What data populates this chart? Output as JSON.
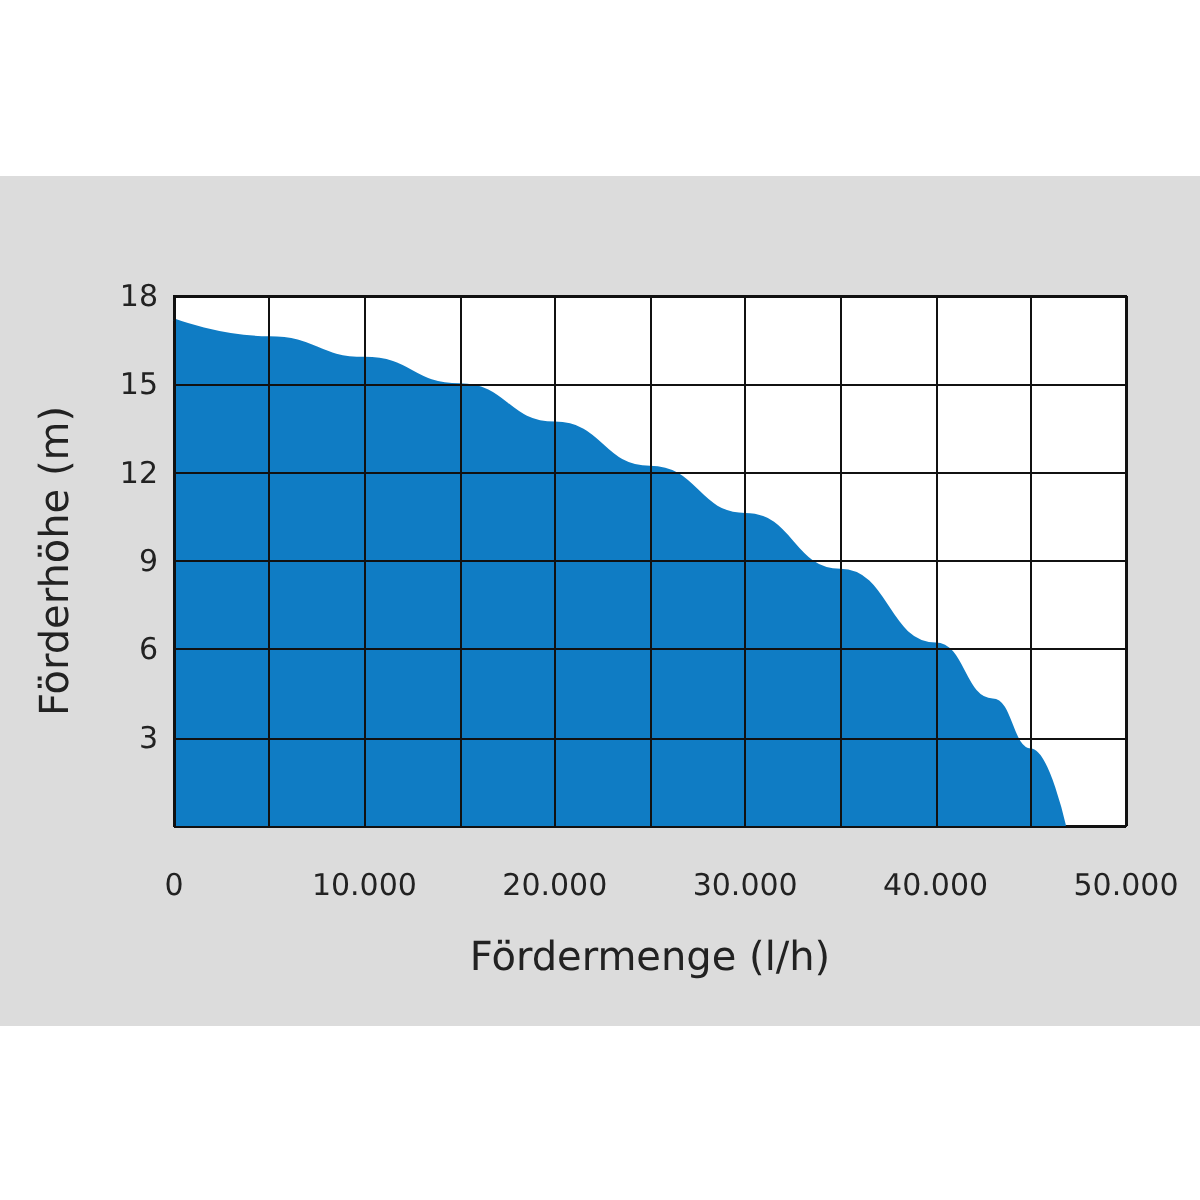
{
  "chart_data": {
    "type": "area",
    "xlabel": "Fördermenge (l/h)",
    "ylabel": "Förderhöhe (m)",
    "x": [
      0,
      5000,
      10000,
      15000,
      20000,
      25000,
      30000,
      35000,
      40000,
      43000,
      45000,
      46800
    ],
    "series": [
      {
        "color": "#0f7cc4",
        "values": [
          17.2,
          16.6,
          15.9,
          15.0,
          13.7,
          12.2,
          10.6,
          8.7,
          6.2,
          4.3,
          2.6,
          0
        ]
      }
    ],
    "xlim": [
      0,
      50000
    ],
    "xticks": [
      {
        "value": 0,
        "label": "0"
      },
      {
        "value": 5000,
        "label": null
      },
      {
        "value": 10000,
        "label": "10.000"
      },
      {
        "value": 15000,
        "label": null
      },
      {
        "value": 20000,
        "label": "20.000"
      },
      {
        "value": 25000,
        "label": null
      },
      {
        "value": 30000,
        "label": "30.000"
      },
      {
        "value": 35000,
        "label": null
      },
      {
        "value": 40000,
        "label": "40.000"
      },
      {
        "value": 45000,
        "label": null
      },
      {
        "value": 50000,
        "label": "50.000"
      }
    ],
    "ylim": [
      0,
      18
    ],
    "yticks": [
      {
        "value": 0,
        "label": null
      },
      3,
      6,
      9,
      12,
      15,
      18
    ],
    "grid": true,
    "marker": "none"
  }
}
